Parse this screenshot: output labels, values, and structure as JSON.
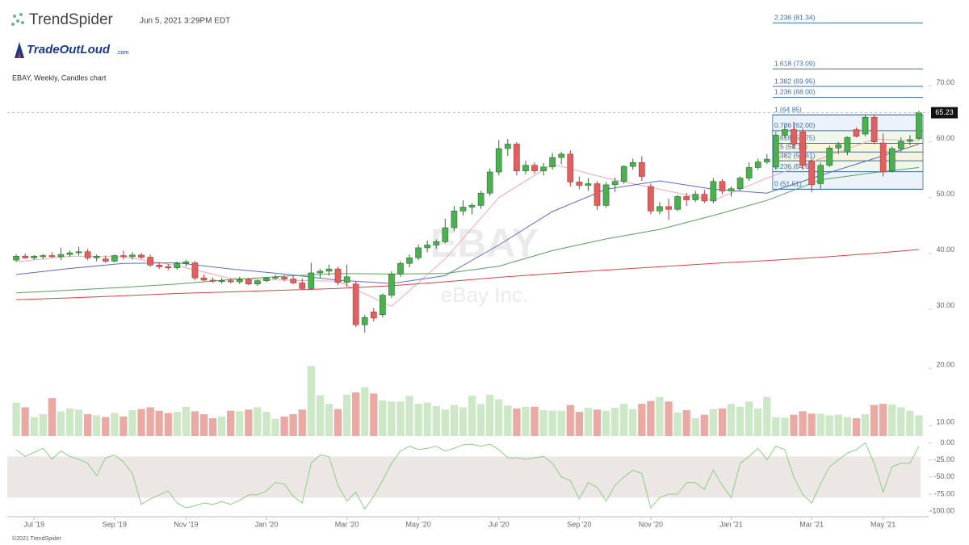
{
  "header": {
    "brand": "TrendSpider",
    "timestamp": "Jun 5, 2021 3:29PM EDT",
    "logo": "TradeOutLoud",
    "logo_suffix": ".com"
  },
  "footer": "©2021 TrendSpider",
  "chart_data": {
    "type": "candlestick",
    "title": "EBAY, Weekly, Candles chart",
    "watermark": {
      "symbol": "EBAY",
      "name": "eBay Inc."
    },
    "up_color": "#4caf50",
    "down_color": "#e06060",
    "ohlc": [
      [
        38.8,
        39.8,
        38.5,
        39.5
      ],
      [
        39.5,
        40.0,
        39.0,
        39.2
      ],
      [
        39.2,
        39.7,
        38.8,
        39.5
      ],
      [
        39.4,
        39.9,
        39.0,
        39.6
      ],
      [
        39.6,
        40.2,
        39.2,
        39.4
      ],
      [
        39.4,
        41.0,
        38.8,
        39.8
      ],
      [
        39.8,
        40.5,
        39.4,
        40.1
      ],
      [
        40.1,
        41.2,
        39.6,
        40.3
      ],
      [
        40.3,
        40.8,
        38.8,
        39.2
      ],
      [
        39.2,
        39.8,
        38.6,
        39.5
      ],
      [
        39.0,
        39.6,
        38.3,
        38.6
      ],
      [
        38.6,
        39.8,
        38.4,
        39.6
      ],
      [
        39.6,
        40.5,
        38.9,
        39.4
      ],
      [
        39.4,
        40.2,
        38.9,
        39.7
      ],
      [
        39.7,
        40.1,
        39.0,
        39.3
      ],
      [
        39.3,
        39.8,
        37.6,
        37.9
      ],
      [
        37.9,
        38.4,
        37.2,
        37.6
      ],
      [
        37.6,
        38.1,
        37.0,
        37.4
      ],
      [
        37.4,
        38.5,
        37.1,
        38.2
      ],
      [
        38.2,
        38.8,
        37.6,
        38.5
      ],
      [
        38.3,
        38.6,
        35.2,
        35.6
      ],
      [
        35.6,
        36.2,
        35.0,
        35.2
      ],
      [
        35.2,
        35.7,
        34.7,
        35.0
      ],
      [
        35.0,
        35.6,
        34.6,
        35.1
      ],
      [
        35.1,
        35.5,
        34.6,
        34.9
      ],
      [
        34.9,
        35.8,
        34.5,
        35.3
      ],
      [
        35.3,
        35.6,
        34.3,
        34.5
      ],
      [
        34.5,
        35.3,
        34.2,
        35.1
      ],
      [
        35.1,
        35.8,
        34.8,
        35.6
      ],
      [
        35.6,
        36.2,
        35.3,
        35.7
      ],
      [
        35.7,
        36.1,
        35.0,
        35.4
      ],
      [
        35.4,
        35.9,
        34.5,
        34.7
      ],
      [
        34.7,
        35.5,
        33.5,
        33.7
      ],
      [
        33.7,
        38.3,
        33.5,
        36.5
      ],
      [
        36.5,
        37.2,
        35.5,
        36.8
      ],
      [
        36.8,
        38.0,
        36.0,
        37.2
      ],
      [
        37.2,
        37.6,
        34.3,
        34.8
      ],
      [
        34.8,
        38.0,
        34.0,
        35.8
      ],
      [
        34.5,
        35.0,
        26.8,
        27.2
      ],
      [
        27.2,
        29.0,
        25.8,
        28.5
      ],
      [
        29.5,
        30.2,
        27.8,
        28.4
      ],
      [
        29.0,
        32.8,
        28.5,
        32.5
      ],
      [
        32.5,
        36.8,
        32.0,
        36.3
      ],
      [
        36.3,
        38.6,
        35.8,
        38.2
      ],
      [
        38.2,
        39.8,
        37.5,
        39.2
      ],
      [
        39.2,
        41.6,
        38.8,
        41.0
      ],
      [
        41.0,
        42.3,
        40.2,
        41.5
      ],
      [
        41.5,
        42.5,
        40.8,
        42.1
      ],
      [
        42.1,
        46.2,
        41.8,
        44.6
      ],
      [
        44.6,
        48.5,
        44.0,
        47.6
      ],
      [
        47.6,
        49.5,
        46.8,
        48.3
      ],
      [
        48.3,
        49.0,
        47.0,
        48.6
      ],
      [
        48.6,
        51.2,
        48.0,
        50.8
      ],
      [
        50.8,
        55.2,
        50.3,
        54.6
      ],
      [
        54.6,
        60.3,
        54.0,
        58.8
      ],
      [
        58.8,
        60.5,
        57.5,
        59.6
      ],
      [
        59.6,
        60.0,
        54.0,
        54.8
      ],
      [
        54.8,
        56.6,
        54.2,
        55.8
      ],
      [
        55.8,
        56.3,
        54.3,
        54.8
      ],
      [
        54.8,
        56.2,
        54.0,
        55.5
      ],
      [
        55.5,
        58.0,
        55.0,
        57.2
      ],
      [
        57.2,
        58.2,
        56.0,
        57.8
      ],
      [
        57.8,
        58.5,
        52.0,
        52.8
      ],
      [
        52.8,
        53.8,
        51.5,
        52.2
      ],
      [
        52.2,
        53.5,
        51.2,
        52.5
      ],
      [
        52.5,
        53.0,
        47.8,
        48.6
      ],
      [
        48.6,
        52.8,
        48.2,
        52.3
      ],
      [
        52.3,
        53.6,
        51.0,
        52.9
      ],
      [
        52.9,
        55.8,
        52.5,
        55.6
      ],
      [
        55.6,
        57.0,
        55.0,
        56.3
      ],
      [
        56.3,
        57.4,
        53.0,
        53.8
      ],
      [
        52.0,
        52.5,
        47.0,
        47.6
      ],
      [
        47.6,
        49.2,
        47.0,
        48.4
      ],
      [
        48.4,
        49.8,
        46.0,
        47.9
      ],
      [
        47.9,
        50.5,
        47.6,
        50.2
      ],
      [
        50.2,
        50.8,
        48.5,
        49.6
      ],
      [
        49.6,
        51.2,
        49.2,
        50.6
      ],
      [
        50.6,
        51.4,
        49.0,
        49.4
      ],
      [
        49.4,
        53.5,
        49.0,
        52.9
      ],
      [
        52.9,
        53.3,
        50.6,
        51.2
      ],
      [
        51.2,
        52.0,
        50.2,
        51.6
      ],
      [
        51.6,
        53.8,
        51.2,
        53.5
      ],
      [
        53.5,
        56.3,
        53.0,
        55.4
      ],
      [
        55.4,
        57.0,
        55.0,
        56.4
      ],
      [
        56.4,
        57.8,
        56.0,
        56.9
      ],
      [
        55.5,
        61.8,
        55.0,
        61.2
      ],
      [
        61.2,
        62.8,
        60.6,
        62.2
      ],
      [
        62.2,
        63.6,
        58.8,
        59.6
      ],
      [
        61.8,
        62.4,
        55.0,
        55.8
      ],
      [
        56.5,
        57.0,
        51.0,
        52.3
      ],
      [
        52.5,
        56.3,
        51.6,
        55.8
      ],
      [
        55.8,
        59.3,
        55.5,
        58.9
      ],
      [
        58.9,
        60.0,
        57.8,
        59.5
      ],
      [
        58.2,
        61.0,
        57.6,
        60.8
      ],
      [
        62.2,
        62.6,
        60.8,
        61.0
      ],
      [
        61.4,
        64.8,
        61.0,
        64.4
      ],
      [
        64.4,
        64.8,
        59.6,
        60.0
      ],
      [
        59.8,
        61.5,
        53.8,
        54.6
      ],
      [
        54.8,
        59.2,
        54.5,
        58.8
      ],
      [
        58.8,
        60.8,
        58.2,
        60.1
      ],
      [
        60.1,
        61.2,
        59.4,
        60.4
      ],
      [
        60.6,
        65.6,
        60.3,
        65.23
      ]
    ],
    "xlim": [
      -1,
      102
    ],
    "xticks": [
      {
        "value": 2,
        "label": "Jul '19"
      },
      {
        "value": 11,
        "label": "Sep '19"
      },
      {
        "value": 19,
        "label": "Nov '19"
      },
      {
        "value": 28,
        "label": "Jan '20"
      },
      {
        "value": 37,
        "label": "Mar '20"
      },
      {
        "value": 45,
        "label": "May '20"
      },
      {
        "value": 54,
        "label": "Jul '20"
      },
      {
        "value": 63,
        "label": "Sep '20"
      },
      {
        "value": 71,
        "label": "Nov '20"
      },
      {
        "value": 80,
        "label": "Jan '21"
      },
      {
        "value": 89,
        "label": "Mar '21"
      },
      {
        "value": 97,
        "label": "May '21"
      }
    ],
    "ylim": [
      21,
      84
    ],
    "yticks": [
      {
        "value": 30,
        "label": "30.00"
      },
      {
        "value": 40,
        "label": "40.00"
      },
      {
        "value": 50,
        "label": "50.00"
      },
      {
        "value": 60,
        "label": "60.00"
      },
      {
        "value": 70,
        "label": "70.00"
      }
    ],
    "moving_averages": [
      {
        "color": "#f4a7b9",
        "x": [
          0,
          6,
          12,
          18,
          24,
          30,
          36,
          42,
          48,
          54,
          60,
          66,
          72,
          78,
          84,
          90,
          96,
          101
        ],
        "values": [
          38.5,
          39.5,
          39.4,
          37.8,
          35.5,
          35.2,
          35.0,
          30.5,
          39.0,
          50.0,
          56.0,
          53.5,
          51.5,
          49.5,
          53.5,
          57.0,
          60.5,
          60.2
        ]
      },
      {
        "color": "#5a6fc0",
        "x": [
          0,
          6,
          12,
          18,
          24,
          30,
          36,
          42,
          48,
          54,
          60,
          66,
          72,
          78,
          84,
          90,
          96,
          101
        ],
        "values": [
          36.2,
          37.3,
          38.2,
          38.3,
          37.2,
          36.3,
          35.2,
          34.6,
          36.0,
          41.5,
          47.5,
          51.5,
          53.0,
          51.5,
          50.8,
          54.0,
          57.0,
          59.6
        ]
      },
      {
        "color": "#5c9e5c",
        "x": [
          0,
          6,
          12,
          18,
          24,
          30,
          36,
          42,
          48,
          54,
          60,
          66,
          72,
          78,
          84,
          90,
          96,
          101
        ],
        "values": [
          32.9,
          33.4,
          33.9,
          34.5,
          35.3,
          35.9,
          36.4,
          36.3,
          36.4,
          37.7,
          40.5,
          42.6,
          44.3,
          46.8,
          49.5,
          53.2,
          54.5,
          55.4
        ]
      },
      {
        "color": "#d64545",
        "x": [
          0,
          6,
          12,
          18,
          24,
          30,
          36,
          42,
          48,
          54,
          60,
          66,
          72,
          78,
          84,
          90,
          96,
          101
        ],
        "values": [
          31.7,
          32.0,
          32.4,
          32.8,
          33.1,
          33.4,
          33.7,
          34.2,
          34.9,
          35.7,
          36.4,
          37.0,
          37.6,
          38.2,
          38.7,
          39.3,
          40.0,
          40.7
        ]
      }
    ],
    "fib_color": "#3b6ea8",
    "fib_start": 85,
    "fib_levels": [
      {
        "label": "2.236 (81.34)",
        "value": 81.34
      },
      {
        "label": "1.618 (73.09)",
        "value": 73.09
      },
      {
        "label": "1.382 (69.95)",
        "value": 69.95
      },
      {
        "label": "1.236 (68.00)",
        "value": 68.0
      },
      {
        "label": "1 (64.85)",
        "value": 64.85
      },
      {
        "label": "0.786 (62.00)",
        "value": 62.0
      },
      {
        "label": "0.618 (59.75)",
        "value": 59.75
      },
      {
        "label": "0.5 (58.18)",
        "value": 58.18
      },
      {
        "label": "0.382 (56.61)",
        "value": 56.61
      },
      {
        "label": "0.236 (54.66)",
        "value": 54.66
      },
      {
        "label": "0 (51.51)",
        "value": 51.51
      }
    ],
    "volume": {
      "up_color": "#cde8c6",
      "down_color": "#e8aaa2",
      "ylim": [
        8.2,
        21
      ],
      "yticks": [
        {
          "value": 10,
          "label": "10.00"
        },
        {
          "value": 20,
          "label": "20.00"
        }
      ],
      "values": [
        14.0,
        13.2,
        11.5,
        12.0,
        14.8,
        12.5,
        13.0,
        12.8,
        12.0,
        11.8,
        11.5,
        12.2,
        11.6,
        12.7,
        12.9,
        13.2,
        12.6,
        12.2,
        12.4,
        13.3,
        12.5,
        12.0,
        11.3,
        11.6,
        12.6,
        12.5,
        12.8,
        13.2,
        12.4,
        11.2,
        11.6,
        12.0,
        12.8,
        20.4,
        15.3,
        13.8,
        12.9,
        15.4,
        15.8,
        16.7,
        15.6,
        14.4,
        14.2,
        14.2,
        15.2,
        13.8,
        14.0,
        13.4,
        12.8,
        13.6,
        13.2,
        15.2,
        13.8,
        15.4,
        14.6,
        13.5,
        13.0,
        13.3,
        13.3,
        12.7,
        12.6,
        12.6,
        13.6,
        12.4,
        13.1,
        12.8,
        12.6,
        13.1,
        13.8,
        12.9,
        13.8,
        14.3,
        15.0,
        14.2,
        12.3,
        12.7,
        11.3,
        11.9,
        12.9,
        13.0,
        13.8,
        13.3,
        14.2,
        13.0,
        15.0,
        11.5,
        11.4,
        11.9,
        12.5,
        12.1,
        12.1,
        11.8,
        11.9,
        11.5,
        11.3,
        12.0,
        13.6,
        13.8,
        13.7,
        13.2,
        12.6,
        11.8
      ]
    },
    "oscillator": {
      "color": "#8ccf84",
      "band_color": "#ece7e5",
      "band": [
        -20,
        -80
      ],
      "ylim": [
        -108,
        4
      ],
      "yticks": [
        {
          "value": 0,
          "label": "0.00"
        },
        {
          "value": -25,
          "label": "-25.00"
        },
        {
          "value": -50,
          "label": "-50.00"
        },
        {
          "value": -75,
          "label": "-75.00"
        },
        {
          "value": -100,
          "label": "-100.00"
        }
      ],
      "values": [
        -10,
        -20,
        -14,
        -8,
        -24,
        -12,
        -20,
        -24,
        -30,
        -48,
        -22,
        -18,
        -28,
        -45,
        -90,
        -82,
        -76,
        -70,
        -88,
        -95,
        -92,
        -88,
        -90,
        -86,
        -90,
        -84,
        -76,
        -76,
        -70,
        -58,
        -60,
        -78,
        -88,
        -30,
        -18,
        -20,
        -62,
        -85,
        -72,
        -97,
        -78,
        -55,
        -30,
        -12,
        -5,
        -10,
        -8,
        -5,
        -12,
        -8,
        -3,
        -2,
        -5,
        -2,
        -10,
        -22,
        -22,
        -24,
        -22,
        -20,
        -30,
        -50,
        -55,
        -82,
        -58,
        -65,
        -85,
        -62,
        -50,
        -40,
        -45,
        -95,
        -80,
        -75,
        -75,
        -58,
        -58,
        -68,
        -40,
        -62,
        -80,
        -30,
        -20,
        -8,
        -25,
        -5,
        -10,
        -50,
        -75,
        -88,
        -60,
        -35,
        -25,
        -15,
        -10,
        0,
        -30,
        -72,
        -35,
        -30,
        -30,
        -5
      ]
    }
  }
}
